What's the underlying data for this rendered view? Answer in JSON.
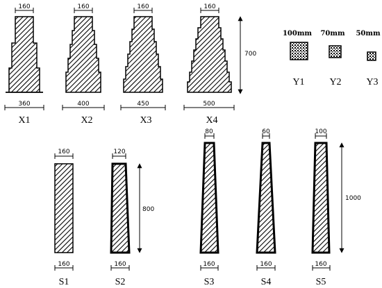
{
  "x_series": [
    {
      "label": "X1",
      "top_width": "160",
      "bottom_width": "360"
    },
    {
      "label": "X2",
      "top_width": "160",
      "bottom_width": "400"
    },
    {
      "label": "X3",
      "top_width": "160",
      "bottom_width": "450"
    },
    {
      "label": "X4",
      "top_width": "160",
      "bottom_width": "500"
    }
  ],
  "x_height": "700",
  "y_series": [
    {
      "label": "Y1",
      "size": "100mm"
    },
    {
      "label": "Y2",
      "size": "70mm"
    },
    {
      "label": "Y3",
      "size": "50mm"
    }
  ],
  "s_series": [
    {
      "label": "S1",
      "top_width": "160",
      "bottom_width": "160"
    },
    {
      "label": "S2",
      "top_width": "120",
      "bottom_width": "160"
    },
    {
      "label": "S3",
      "top_width": "80",
      "bottom_width": "160"
    },
    {
      "label": "S4",
      "top_width": "60",
      "bottom_width": "160"
    },
    {
      "label": "S5",
      "top_width": "100",
      "bottom_width": "160"
    }
  ],
  "s_height_left": "800",
  "s_height_right": "1000"
}
